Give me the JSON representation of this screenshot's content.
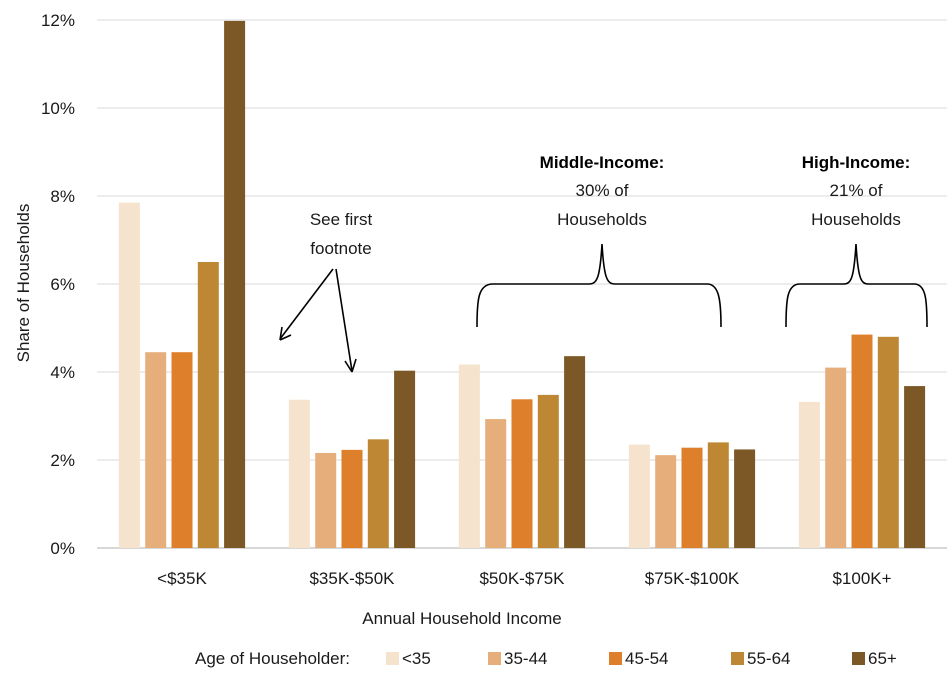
{
  "chart_data": {
    "type": "bar",
    "title": "",
    "xlabel": "Annual Household Income",
    "ylabel": "Share of Households",
    "ylim": [
      0,
      12
    ],
    "yticks": [
      0,
      2,
      4,
      6,
      8,
      10,
      12
    ],
    "ytick_labels": [
      "0%",
      "2%",
      "4%",
      "6%",
      "8%",
      "10%",
      "12%"
    ],
    "grid": true,
    "legend_placement": "bottom",
    "legend_title": "Age of Householder:",
    "categories": [
      "<$35K",
      "$35K-$50K",
      "$50K-$75K",
      "$75K-$100K",
      "$100K+"
    ],
    "series": [
      {
        "name": "<35",
        "color": "#f6e3cd",
        "values": [
          7.85,
          3.37,
          4.17,
          2.35,
          3.32
        ]
      },
      {
        "name": "35-44",
        "color": "#e6ae7b",
        "values": [
          4.45,
          2.16,
          2.93,
          2.11,
          4.1
        ]
      },
      {
        "name": "45-54",
        "color": "#de7f2b",
        "values": [
          4.45,
          2.23,
          3.38,
          2.28,
          4.85
        ]
      },
      {
        "name": "55-64",
        "color": "#bd8733",
        "values": [
          6.5,
          2.47,
          3.48,
          2.4,
          4.8
        ]
      },
      {
        "name": "65+",
        "color": "#7b5826",
        "values": [
          11.98,
          4.03,
          4.36,
          2.24,
          3.68
        ]
      }
    ],
    "annotations": {
      "footnote": {
        "lines": [
          "See first",
          "footnote"
        ]
      },
      "middle_income": {
        "heading": "Middle-Income:",
        "lines": [
          "30% of",
          "Households"
        ]
      },
      "high_income": {
        "heading": "High-Income:",
        "lines": [
          "21% of",
          "Households"
        ]
      }
    }
  }
}
